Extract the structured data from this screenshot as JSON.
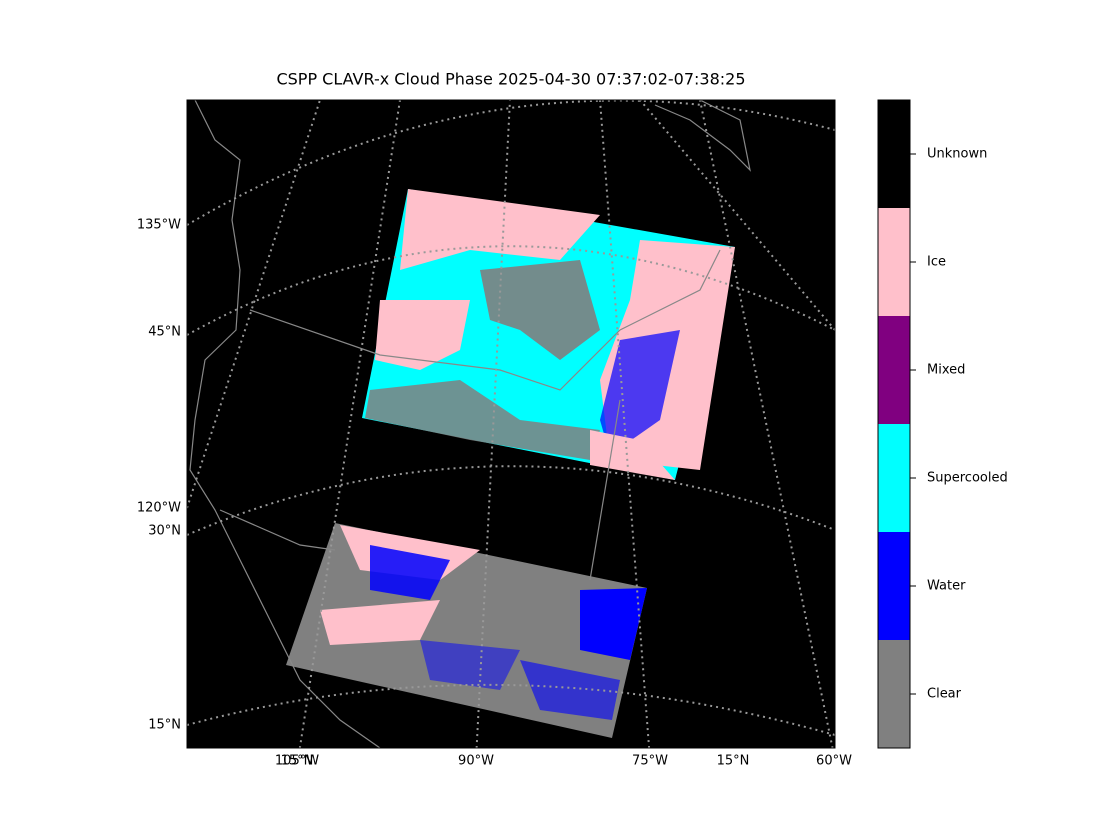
{
  "title": "CSPP CLAVR-x Cloud Phase 2025-04-30 07:37:02-07:38:25",
  "map": {
    "left_labels": [
      "135°W",
      "45°N",
      "120°W",
      "30°N",
      "15°N"
    ],
    "bottom_labels": [
      "105°W",
      "15°N",
      "90°W",
      "75°W",
      "15°N",
      "60°W"
    ]
  },
  "colorbar": {
    "items": [
      {
        "label": "Unknown",
        "color": "#000000"
      },
      {
        "label": "Ice",
        "color": "#ffc0cb"
      },
      {
        "label": "Mixed",
        "color": "#800080"
      },
      {
        "label": "Supercooled",
        "color": "#00ffff"
      },
      {
        "label": "Water",
        "color": "#0000ff"
      },
      {
        "label": "Clear",
        "color": "#808080"
      }
    ]
  }
}
